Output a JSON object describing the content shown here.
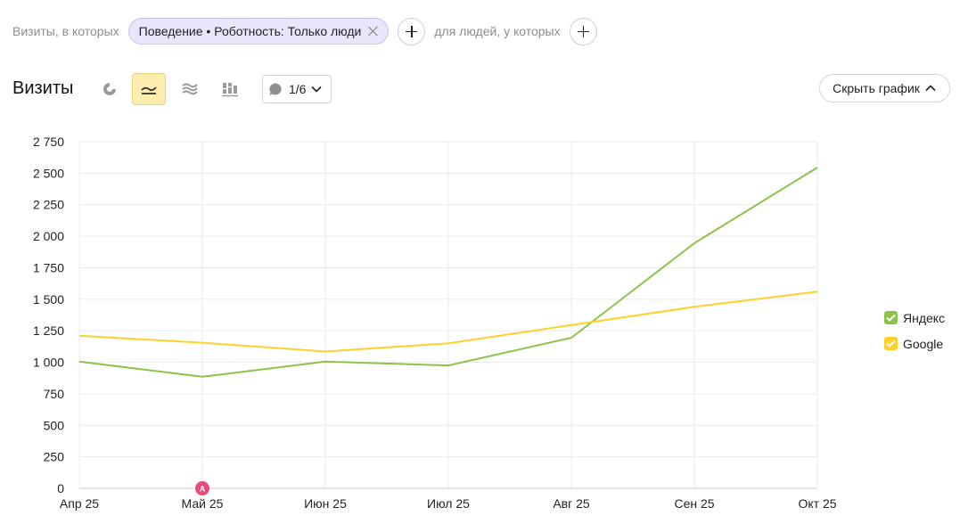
{
  "filter": {
    "visits_label": "Визиты, в которых",
    "segment_chip": "Поведение • Роботность: Только люди",
    "people_label": "для людей, у которых"
  },
  "toolbar": {
    "title": "Визиты",
    "annotations_label": "1/6",
    "hide_chart_label": "Скрыть график"
  },
  "colors": {
    "yandex": "#8bc34a",
    "google": "#fcd12a",
    "grid": "#ebebeb",
    "annotation_marker": "#e94a7a"
  },
  "chart_data": {
    "type": "line",
    "categories": [
      "Апр 25",
      "Май 25",
      "Июн 25",
      "Июл 25",
      "Авг 25",
      "Сен 25",
      "Окт 25"
    ],
    "series": [
      {
        "name": "Яндекс",
        "values": [
          1005,
          885,
          1005,
          975,
          1195,
          1945,
          2545
        ]
      },
      {
        "name": "Google",
        "values": [
          1210,
          1155,
          1085,
          1150,
          1295,
          1440,
          1560
        ]
      }
    ],
    "yticks": [
      0,
      250,
      500,
      750,
      1000,
      1250,
      1500,
      1750,
      2000,
      2250,
      2500,
      2750
    ],
    "ytick_labels": [
      "0",
      "250",
      "500",
      "750",
      "1 000",
      "1 250",
      "1 500",
      "1 750",
      "2 000",
      "2 250",
      "2 500",
      "2 750"
    ],
    "ylim": [
      0,
      2750
    ],
    "grid": true,
    "legend_position": "right",
    "annotation": {
      "category": "Май 25",
      "label": "A"
    }
  }
}
